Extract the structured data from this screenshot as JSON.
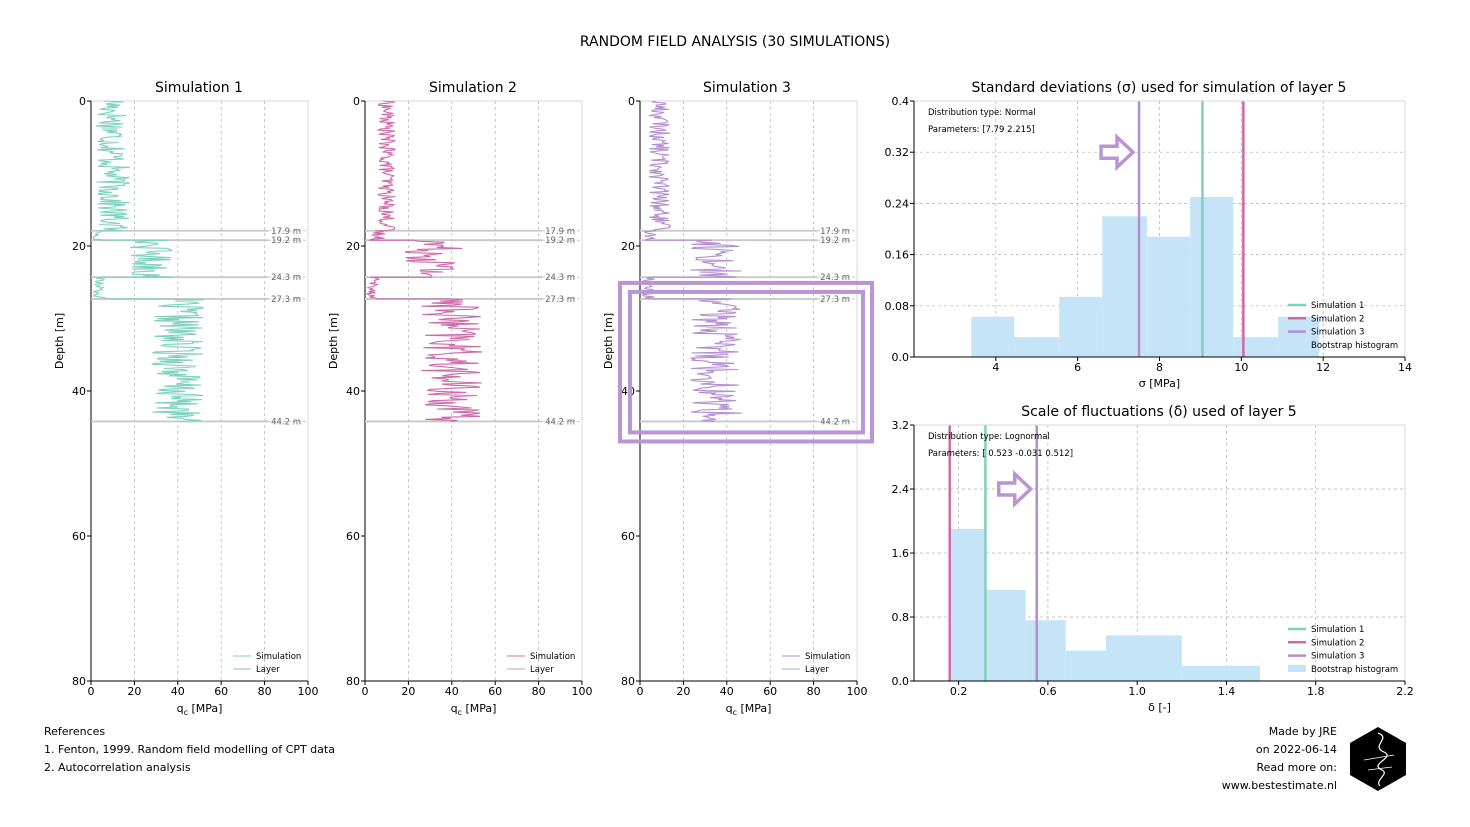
{
  "figure": {
    "title": "RANDOM FIELD ANALYSIS (30 SIMULATIONS)"
  },
  "colors": {
    "sim1": "#7fd1bf",
    "sim2": "#cc6aaa",
    "sim3": "#b48fd0",
    "layer": "#c8c8c8",
    "bootstrap": "#c6e4f8",
    "highlight": "#b995d3"
  },
  "chart_data": [
    {
      "type": "line",
      "title": "Simulation 1",
      "xlabel": "q_c [MPa]",
      "ylabel": "Depth [m]",
      "xlim": [
        0,
        100
      ],
      "ylim": [
        0,
        80
      ],
      "xticks": [
        "0",
        "20",
        "40",
        "60",
        "80",
        "100"
      ],
      "yticks": [
        "0",
        "20",
        "40",
        "60",
        "80"
      ],
      "series": [
        {
          "name": "Simulation",
          "color_key": "sim1",
          "segments": [
            {
              "from_depth": 0.0,
              "to_depth": 17.9,
              "mean_qc": 10,
              "spread": 8
            },
            {
              "from_depth": 17.9,
              "to_depth": 19.2,
              "mean_qc": 4,
              "spread": 3
            },
            {
              "from_depth": 19.2,
              "to_depth": 24.3,
              "mean_qc": 28,
              "spread": 10
            },
            {
              "from_depth": 24.3,
              "to_depth": 27.3,
              "mean_qc": 4,
              "spread": 3
            },
            {
              "from_depth": 27.3,
              "to_depth": 44.2,
              "mean_qc": 40,
              "spread": 12
            }
          ]
        }
      ],
      "layer_boundaries": [
        17.9,
        19.2,
        24.3,
        27.3,
        44.2
      ],
      "boundary_labels": [
        "17.9 m",
        "19.2 m",
        "24.3 m",
        "27.3 m",
        "44.2 m"
      ],
      "legend": [
        "Simulation",
        "Layer"
      ]
    },
    {
      "type": "line",
      "title": "Simulation 2",
      "xlabel": "q_c [MPa]",
      "ylabel": "Depth [m]",
      "xlim": [
        0,
        100
      ],
      "ylim": [
        0,
        80
      ],
      "xticks": [
        "0",
        "20",
        "40",
        "60",
        "80",
        "100"
      ],
      "yticks": [
        "0",
        "20",
        "40",
        "60",
        "80"
      ],
      "series": [
        {
          "name": "Simulation",
          "color_key": "sim2",
          "segments": [
            {
              "from_depth": 0.0,
              "to_depth": 17.9,
              "mean_qc": 10,
              "spread": 4
            },
            {
              "from_depth": 17.9,
              "to_depth": 19.2,
              "mean_qc": 6,
              "spread": 4
            },
            {
              "from_depth": 19.2,
              "to_depth": 24.3,
              "mean_qc": 32,
              "spread": 14
            },
            {
              "from_depth": 24.3,
              "to_depth": 27.3,
              "mean_qc": 4,
              "spread": 3
            },
            {
              "from_depth": 27.3,
              "to_depth": 44.2,
              "mean_qc": 40,
              "spread": 14
            }
          ]
        }
      ],
      "layer_boundaries": [
        17.9,
        19.2,
        24.3,
        27.3,
        44.2
      ],
      "boundary_labels": [
        "17.9 m",
        "19.2 m",
        "24.3 m",
        "27.3 m",
        "44.2 m"
      ],
      "legend": [
        "Simulation",
        "Layer"
      ]
    },
    {
      "type": "line",
      "title": "Simulation 3",
      "xlabel": "q_c [MPa]",
      "ylabel": "Depth [m]",
      "xlim": [
        0,
        100
      ],
      "ylim": [
        0,
        80
      ],
      "xticks": [
        "0",
        "20",
        "40",
        "60",
        "80",
        "100"
      ],
      "yticks": [
        "0",
        "20",
        "40",
        "60",
        "80"
      ],
      "series": [
        {
          "name": "Simulation",
          "color_key": "sim3",
          "segments": [
            {
              "from_depth": 0.0,
              "to_depth": 17.9,
              "mean_qc": 9,
              "spread": 5
            },
            {
              "from_depth": 17.9,
              "to_depth": 19.2,
              "mean_qc": 5,
              "spread": 3
            },
            {
              "from_depth": 19.2,
              "to_depth": 24.3,
              "mean_qc": 35,
              "spread": 12
            },
            {
              "from_depth": 24.3,
              "to_depth": 27.3,
              "mean_qc": 4,
              "spread": 3
            },
            {
              "from_depth": 27.3,
              "to_depth": 44.2,
              "mean_qc": 35,
              "spread": 12
            }
          ]
        }
      ],
      "layer_boundaries": [
        17.9,
        19.2,
        24.3,
        27.3,
        44.2
      ],
      "boundary_labels": [
        "17.9 m",
        "19.2 m",
        "24.3 m",
        "27.3 m",
        "44.2 m"
      ],
      "highlight_depth_range": [
        27.3,
        44.2
      ],
      "legend": [
        "Simulation",
        "Layer"
      ]
    },
    {
      "type": "bar",
      "title": "Standard deviations (σ) used for simulation of layer 5",
      "xlabel": "σ [MPa]",
      "xlim": [
        2,
        14
      ],
      "ylim": [
        0,
        0.4
      ],
      "xticks": [
        "4",
        "6",
        "8",
        "10",
        "12",
        "14"
      ],
      "yticks": [
        "0.0",
        "0.08",
        "0.16",
        "0.24",
        "0.32",
        "0.4"
      ],
      "annotations": [
        "Distribution type: Normal",
        "Parameters: [7.79  2.215]"
      ],
      "histogram": {
        "name": "Bootstrap histogram",
        "bin_edges": [
          3.4,
          4.45,
          5.55,
          6.6,
          7.7,
          8.75,
          9.8,
          10.9,
          11.9
        ],
        "values": [
          0.063,
          0.031,
          0.094,
          0.22,
          0.188,
          0.25,
          0.031,
          0.063
        ]
      },
      "vertical_lines": [
        {
          "name": "Simulation 1",
          "x": 9.05,
          "color_key": "sim1"
        },
        {
          "name": "Simulation 2",
          "x": 10.05,
          "color_key": "sim2"
        },
        {
          "name": "Simulation 3",
          "x": 7.5,
          "color_key": "sim3"
        }
      ],
      "arrow_at": {
        "x": 7.5,
        "y": 0.32
      },
      "legend": [
        "Simulation 1",
        "Simulation 2",
        "Simulation 3",
        "Bootstrap histogram"
      ]
    },
    {
      "type": "bar",
      "title": "Scale of fluctuations (δ) used of layer 5",
      "xlabel": "δ [-]",
      "xlim": [
        0,
        2.2
      ],
      "ylim": [
        0,
        3.2
      ],
      "xticks": [
        "0.2",
        "0.6",
        "1.0",
        "1.4",
        "1.8",
        "2.2"
      ],
      "yticks": [
        "0.0",
        "0.8",
        "1.6",
        "2.4",
        "3.2"
      ],
      "annotations": [
        "Distribution type: Lognormal",
        "Parameters: [ 0.523 -0.031  0.512]"
      ],
      "histogram": {
        "name": "Bootstrap histogram",
        "bin_edges": [
          0.16,
          0.32,
          0.5,
          0.68,
          0.86,
          1.2,
          1.55
        ],
        "values": [
          1.9,
          1.14,
          0.76,
          0.38,
          0.57,
          0.19
        ]
      },
      "vertical_lines": [
        {
          "name": "Simulation 1",
          "x": 0.32,
          "color_key": "sim1"
        },
        {
          "name": "Simulation 2",
          "x": 0.16,
          "color_key": "sim2"
        },
        {
          "name": "Simulation 3",
          "x": 0.55,
          "color_key": "sim3"
        }
      ],
      "arrow_at": {
        "x": 0.55,
        "y": 2.4
      },
      "legend": [
        "Simulation 1",
        "Simulation 2",
        "Simulation 3",
        "Bootstrap histogram"
      ]
    }
  ],
  "references": {
    "heading": "References",
    "items": [
      "1. Fenton, 1999. Random field modelling of CPT data",
      "2. Autocorrelation analysis"
    ]
  },
  "credits": {
    "line1": "Made by JRE",
    "line2": "on 2022-06-14",
    "line3": "Read more on:",
    "line4": "www.bestestimate.nl",
    "logo": "hexagon-logo"
  }
}
